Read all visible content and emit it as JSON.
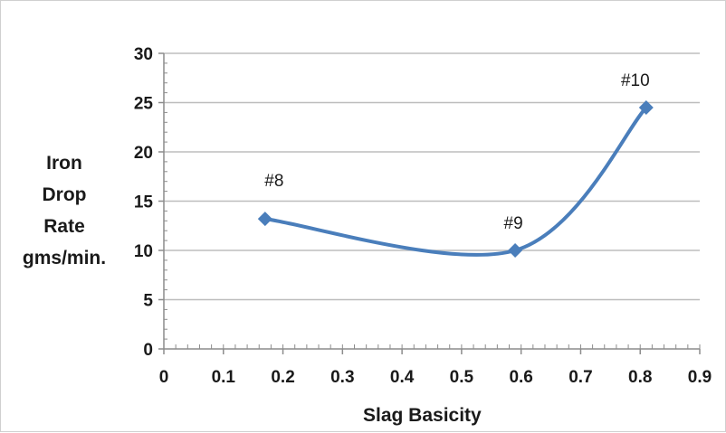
{
  "chart_data": {
    "type": "line",
    "title": "",
    "xlabel": "Slag Basicity",
    "ylabel_lines": [
      "Iron",
      "Drop",
      "Rate",
      "gms/min."
    ],
    "xlim": [
      0,
      0.9
    ],
    "ylim": [
      0,
      30
    ],
    "x_ticks": [
      "0",
      "0.1",
      "0.2",
      "0.3",
      "0.4",
      "0.5",
      "0.6",
      "0.7",
      "0.8",
      "0.9"
    ],
    "y_ticks": [
      "0",
      "5",
      "10",
      "15",
      "20",
      "25",
      "30"
    ],
    "grid": "horizontal",
    "legend": "none",
    "line_color": "#4a7ebb",
    "smooth": true,
    "series": [
      {
        "x": [
          0.17,
          0.59,
          0.81
        ],
        "y": [
          13.2,
          10.0,
          24.5
        ]
      }
    ],
    "annotations": [
      "#8",
      "#9",
      "#10"
    ]
  }
}
